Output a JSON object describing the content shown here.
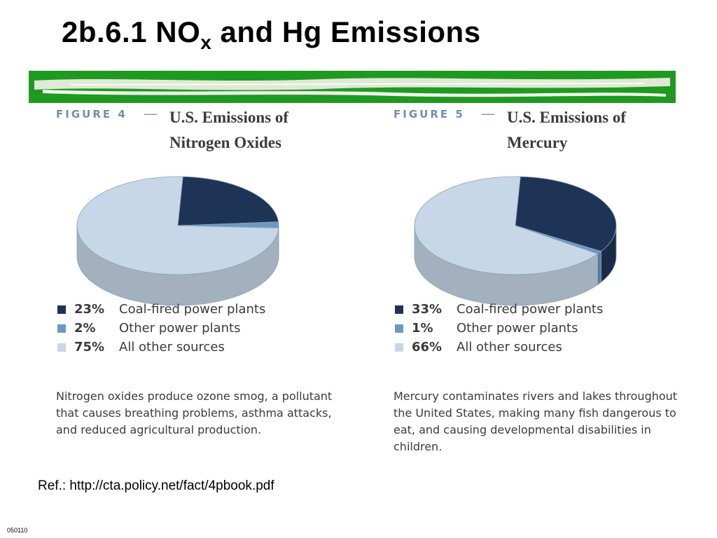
{
  "slide": {
    "title_main": "2b.6.1 NO",
    "title_sub": "x",
    "title_rest": " and Hg Emissions",
    "reference": "Ref.: http://cta.policy.net/fact/4pbook.pdf",
    "slide_code": "050110"
  },
  "colors": {
    "green_band": "#1f9a20",
    "coal": "#1e3456",
    "other_power": "#6c99c4",
    "other_sources": "#c7d7e8",
    "figure_label": "#6f8fb4"
  },
  "figures": [
    {
      "label": "FIGURE 4",
      "dash": "—",
      "title_line1": "U.S. Emissions of",
      "title_line2": "Nitrogen Oxides",
      "legend": [
        {
          "pct": "23%",
          "label": "Coal-fired power plants"
        },
        {
          "pct": "2%",
          "label": "Other power plants"
        },
        {
          "pct": "75%",
          "label": "All other sources"
        }
      ],
      "caption": "Nitrogen oxides produce ozone smog, a pollutant that causes breathing problems, asthma attacks, and reduced agricultural production."
    },
    {
      "label": "FIGURE 5",
      "dash": "—",
      "title_line1": "U.S. Emissions of",
      "title_line2": "Mercury",
      "legend": [
        {
          "pct": "33%",
          "label": "Coal-fired power plants"
        },
        {
          "pct": "1%",
          "label": "Other power plants"
        },
        {
          "pct": "66%",
          "label": "All other sources"
        }
      ],
      "caption": "Mercury contaminates rivers and lakes throughout the United States, making many fish dangerous to eat, and causing developmental disabilities in children."
    }
  ],
  "chart_data": [
    {
      "type": "pie",
      "title": "U.S. Emissions of Nitrogen Oxides",
      "categories": [
        "Coal-fired power plants",
        "Other power plants",
        "All other sources"
      ],
      "values": [
        23,
        2,
        75
      ],
      "unit": "%"
    },
    {
      "type": "pie",
      "title": "U.S. Emissions of Mercury",
      "categories": [
        "Coal-fired power plants",
        "Other power plants",
        "All other sources"
      ],
      "values": [
        33,
        1,
        66
      ],
      "unit": "%"
    }
  ]
}
